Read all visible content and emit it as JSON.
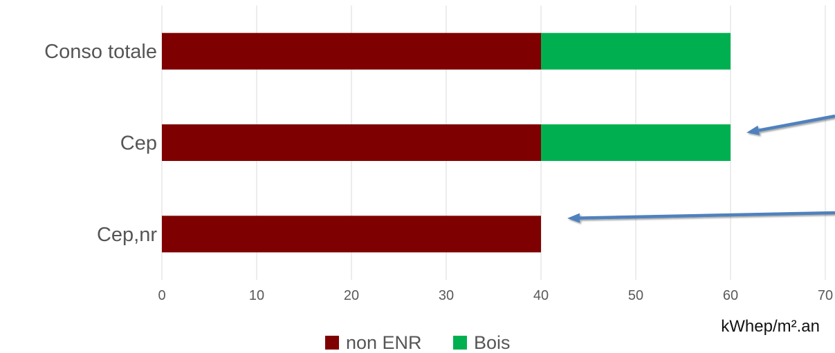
{
  "chart_data": {
    "type": "bar",
    "orientation": "horizontal",
    "stacked": true,
    "categories": [
      "Conso totale",
      "Cep",
      "Cep,nr"
    ],
    "series": [
      {
        "name": "non ENR",
        "values": [
          40,
          40,
          40
        ],
        "color": "#7f0000"
      },
      {
        "name": "Bois",
        "values": [
          20,
          20,
          0
        ],
        "color": "#00b050"
      }
    ],
    "xlim": [
      0,
      70
    ],
    "xticks": [
      "0",
      "10",
      "20",
      "30",
      "40",
      "50",
      "60",
      "70"
    ],
    "xlabel": "kWhep/m².an",
    "grid": true,
    "legend_position": "bottom",
    "arrow_color": "#4f81bd"
  }
}
